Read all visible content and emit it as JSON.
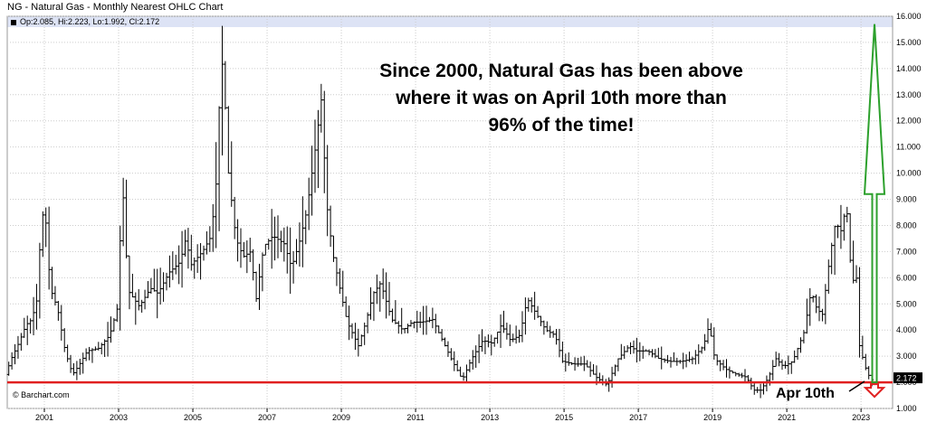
{
  "chart_data": {
    "type": "ohlc",
    "title": "NG - Natural Gas - Monthly Nearest OHLC Chart",
    "ohlc_readout": "Op:2.085, Hi:2.223, Lo:1.992, Cl:2.172",
    "last_price_label": "2.172",
    "credit": "© Barchart.com",
    "annotation_lines": [
      "Since 2000, Natural Gas has been above",
      "where it was on April 10th more than",
      "96% of the time!"
    ],
    "callout": "Apr 10th",
    "x_ticks": [
      "2001",
      "2003",
      "2005",
      "2007",
      "2009",
      "2011",
      "2013",
      "2015",
      "2017",
      "2019",
      "2021",
      "2023"
    ],
    "y_ticks": [
      "1.000",
      "2.000",
      "3.000",
      "4.000",
      "5.000",
      "6.000",
      "7.000",
      "8.000",
      "9.000",
      "10.000",
      "11.000",
      "12.000",
      "13.000",
      "14.000",
      "15.000",
      "16.000"
    ],
    "ylim": [
      1,
      16
    ],
    "xlim": [
      2000.0,
      2023.85
    ],
    "reference_level": 2.0,
    "upside_target": 15.7,
    "colors": {
      "price": "#000000",
      "reference_line": "#e02020",
      "up_arrow": "#2ca02c",
      "down_arrow": "#e02020",
      "grid": "#cccccc"
    },
    "anchors": [
      [
        2000.0,
        2.3
      ],
      [
        2000.15,
        2.9
      ],
      [
        2000.35,
        3.5
      ],
      [
        2000.55,
        4.2
      ],
      [
        2000.7,
        4.4
      ],
      [
        2000.85,
        5.2
      ],
      [
        2000.95,
        8.0
      ],
      [
        2001.05,
        8.8
      ],
      [
        2001.2,
        5.6
      ],
      [
        2001.4,
        4.8
      ],
      [
        2001.6,
        3.2
      ],
      [
        2001.8,
        2.3
      ],
      [
        2001.95,
        2.6
      ],
      [
        2002.2,
        3.2
      ],
      [
        2002.5,
        3.3
      ],
      [
        2002.8,
        3.8
      ],
      [
        2003.0,
        4.8
      ],
      [
        2003.15,
        9.5
      ],
      [
        2003.3,
        5.5
      ],
      [
        2003.6,
        4.9
      ],
      [
        2003.9,
        5.6
      ],
      [
        2004.1,
        5.4
      ],
      [
        2004.4,
        6.2
      ],
      [
        2004.7,
        6.6
      ],
      [
        2004.85,
        7.5
      ],
      [
        2005.0,
        6.5
      ],
      [
        2005.3,
        7.0
      ],
      [
        2005.5,
        7.5
      ],
      [
        2005.65,
        9.0
      ],
      [
        2005.75,
        12.5
      ],
      [
        2005.85,
        14.5
      ],
      [
        2006.0,
        10.0
      ],
      [
        2006.2,
        7.5
      ],
      [
        2006.4,
        6.8
      ],
      [
        2006.6,
        7.0
      ],
      [
        2006.75,
        5.2
      ],
      [
        2006.95,
        7.2
      ],
      [
        2007.2,
        7.6
      ],
      [
        2007.5,
        7.3
      ],
      [
        2007.7,
        6.4
      ],
      [
        2007.9,
        7.3
      ],
      [
        2008.1,
        8.5
      ],
      [
        2008.3,
        10.5
      ],
      [
        2008.5,
        12.8
      ],
      [
        2008.65,
        8.8
      ],
      [
        2008.8,
        7.0
      ],
      [
        2009.0,
        5.6
      ],
      [
        2009.2,
        4.3
      ],
      [
        2009.5,
        3.4
      ],
      [
        2009.7,
        4.3
      ],
      [
        2009.9,
        5.4
      ],
      [
        2010.1,
        5.8
      ],
      [
        2010.4,
        4.4
      ],
      [
        2010.7,
        4.0
      ],
      [
        2010.95,
        4.3
      ],
      [
        2011.2,
        4.3
      ],
      [
        2011.5,
        4.4
      ],
      [
        2011.8,
        3.5
      ],
      [
        2012.0,
        2.9
      ],
      [
        2012.3,
        2.1
      ],
      [
        2012.55,
        2.9
      ],
      [
        2012.85,
        3.6
      ],
      [
        2013.1,
        3.5
      ],
      [
        2013.35,
        4.2
      ],
      [
        2013.6,
        3.6
      ],
      [
        2013.85,
        3.8
      ],
      [
        2014.05,
        5.2
      ],
      [
        2014.3,
        4.6
      ],
      [
        2014.55,
        4.0
      ],
      [
        2014.8,
        3.8
      ],
      [
        2015.0,
        2.8
      ],
      [
        2015.3,
        2.7
      ],
      [
        2015.6,
        2.7
      ],
      [
        2015.9,
        2.2
      ],
      [
        2016.2,
        1.9
      ],
      [
        2016.5,
        2.9
      ],
      [
        2016.8,
        3.4
      ],
      [
        2017.0,
        3.2
      ],
      [
        2017.3,
        3.2
      ],
      [
        2017.6,
        2.9
      ],
      [
        2017.9,
        2.8
      ],
      [
        2018.2,
        2.8
      ],
      [
        2018.5,
        2.9
      ],
      [
        2018.8,
        3.4
      ],
      [
        2018.95,
        4.2
      ],
      [
        2019.1,
        2.9
      ],
      [
        2019.4,
        2.5
      ],
      [
        2019.7,
        2.3
      ],
      [
        2019.95,
        2.2
      ],
      [
        2020.15,
        1.7
      ],
      [
        2020.35,
        1.7
      ],
      [
        2020.55,
        2.2
      ],
      [
        2020.75,
        2.9
      ],
      [
        2020.95,
        2.6
      ],
      [
        2021.2,
        2.8
      ],
      [
        2021.5,
        3.9
      ],
      [
        2021.7,
        5.5
      ],
      [
        2021.85,
        4.8
      ],
      [
        2022.0,
        4.6
      ],
      [
        2022.2,
        6.8
      ],
      [
        2022.35,
        8.1
      ],
      [
        2022.5,
        7.8
      ],
      [
        2022.65,
        8.8
      ],
      [
        2022.8,
        5.6
      ],
      [
        2022.9,
        6.5
      ],
      [
        2023.0,
        3.4
      ],
      [
        2023.15,
        2.6
      ],
      [
        2023.3,
        2.1
      ]
    ]
  }
}
